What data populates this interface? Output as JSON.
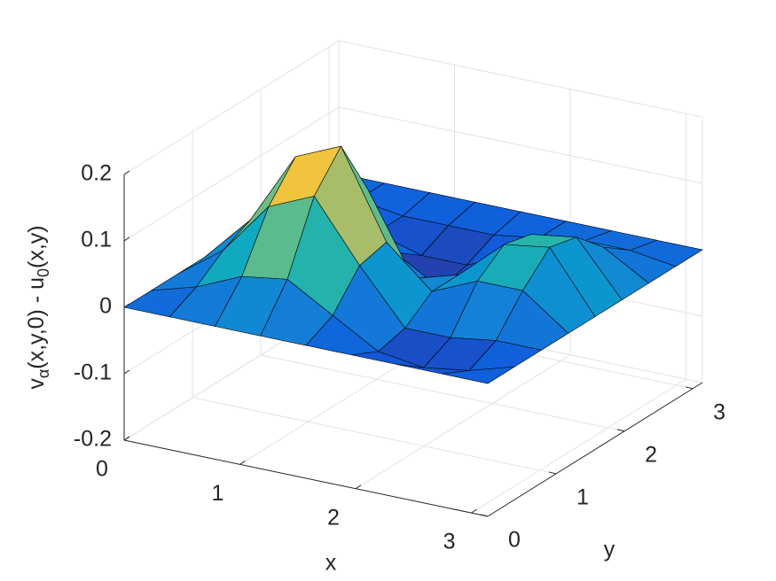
{
  "chart_data": {
    "type": "surface",
    "x": [
      0,
      0.3927,
      0.7854,
      1.1781,
      1.5708,
      1.9635,
      2.3562,
      2.7489,
      3.1416
    ],
    "y": [
      0,
      0.3927,
      0.7854,
      1.1781,
      1.5708,
      1.9635,
      2.3562,
      2.7489,
      3.1416
    ],
    "z": [
      [
        0,
        0,
        0,
        0,
        0,
        0,
        0,
        0,
        0
      ],
      [
        0,
        0.02,
        0.05,
        0.06,
        0.02,
        -0.02,
        -0.03,
        -0.02,
        0
      ],
      [
        0,
        0.05,
        0.13,
        0.16,
        0.07,
        -0.01,
        -0.01,
        0,
        0
      ],
      [
        0,
        0.07,
        0.18,
        0.21,
        0.08,
        0.02,
        0.05,
        0.05,
        0
      ],
      [
        0,
        0.05,
        0.13,
        0.12,
        0,
        0.02,
        0.08,
        0.09,
        0
      ],
      [
        0,
        0.02,
        0.04,
        0,
        -0.04,
        0,
        0.07,
        0.08,
        0
      ],
      [
        0,
        0,
        -0.01,
        -0.03,
        -0.03,
        0,
        0.04,
        0.04,
        0
      ],
      [
        0,
        0,
        -0.01,
        -0.01,
        -0.01,
        0,
        0.01,
        0.01,
        0
      ],
      [
        0,
        0,
        0,
        0,
        0,
        0,
        0,
        0,
        0
      ]
    ],
    "xlim": [
      0,
      3.1416
    ],
    "ylim": [
      0,
      3.1416
    ],
    "zlim": [
      -0.2,
      0.2
    ],
    "xticks": [
      0,
      1,
      2,
      3
    ],
    "yticks": [
      0,
      1,
      2,
      3
    ],
    "zticks": [
      -0.2,
      -0.1,
      0,
      0.1,
      0.2
    ],
    "xlabel": "x",
    "ylabel": "y",
    "zlabel": [
      "v",
      "α",
      "(x,y,0) - u",
      "0",
      "(x,y)"
    ],
    "grid": true,
    "colormap": [
      "#352a87",
      "#0f5cdd",
      "#1481d6",
      "#06a4ca",
      "#2eb7a4",
      "#87bf77",
      "#d1bb59",
      "#fec832",
      "#f9fb0e"
    ],
    "edgecolor": "#000000"
  }
}
